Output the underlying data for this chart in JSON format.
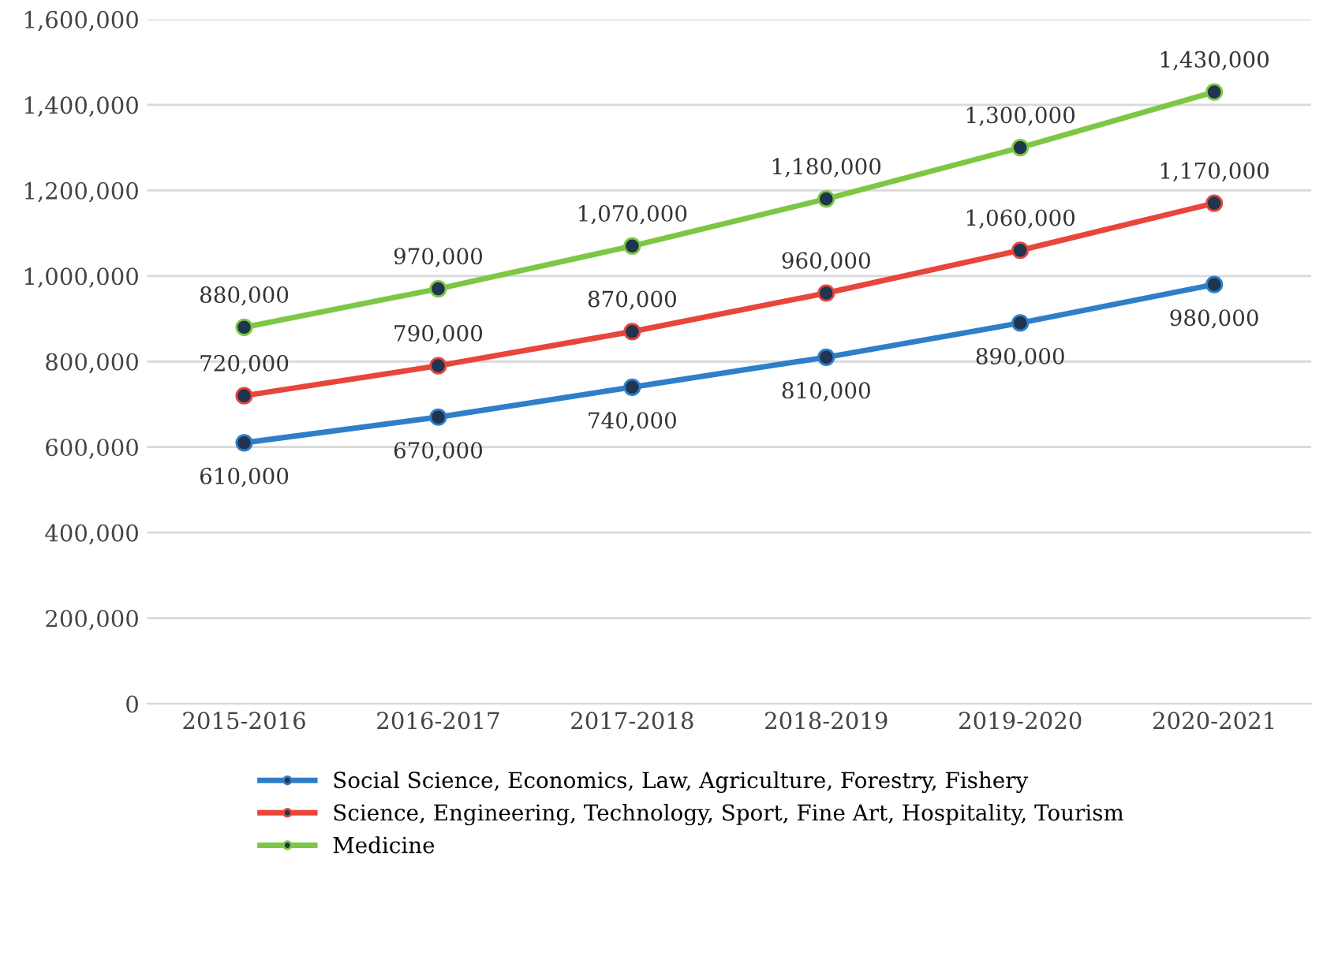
{
  "chart_data": {
    "type": "line",
    "categories": [
      "2015-2016",
      "2016-2017",
      "2017-2018",
      "2018-2019",
      "2019-2020",
      "2020-2021"
    ],
    "series": [
      {
        "name": "Social Science, Economics, Law, Agriculture, Forestry, Fishery",
        "color": "#2f7fc8",
        "values": [
          610000,
          670000,
          740000,
          810000,
          890000,
          980000
        ],
        "value_labels": [
          "610,000",
          "670,000",
          "740,000",
          "810,000",
          "890,000",
          "980,000"
        ]
      },
      {
        "name": "Science, Engineering, Technology, Sport, Fine Art, Hospitality, Tourism",
        "color": "#e8453c",
        "values": [
          720000,
          790000,
          870000,
          960000,
          1060000,
          1170000
        ],
        "value_labels": [
          "720,000",
          "790,000",
          "870,000",
          "960,000",
          "1,060,000",
          "1,170,000"
        ]
      },
      {
        "name": "Medicine",
        "color": "#7dc744",
        "values": [
          880000,
          970000,
          1070000,
          1180000,
          1300000,
          1430000
        ],
        "value_labels": [
          "880,000",
          "970,000",
          "1,070,000",
          "1,180,000",
          "1,300,000",
          "1,430,000"
        ]
      }
    ],
    "ylim": [
      0,
      1600000
    ],
    "yticks": [
      {
        "value": 0,
        "label": "0"
      },
      {
        "value": 200000,
        "label": "200,000"
      },
      {
        "value": 400000,
        "label": "400,000"
      },
      {
        "value": 600000,
        "label": "600,000"
      },
      {
        "value": 800000,
        "label": "800,000"
      },
      {
        "value": 1000000,
        "label": "1,000,000"
      },
      {
        "value": 1200000,
        "label": "1,200,000"
      },
      {
        "value": 1400000,
        "label": "1,400,000"
      },
      {
        "value": 1600000,
        "label": "1,600,000"
      }
    ],
    "grid": "y",
    "legend": "bottom",
    "marker": "circle",
    "line_style": "solid"
  }
}
